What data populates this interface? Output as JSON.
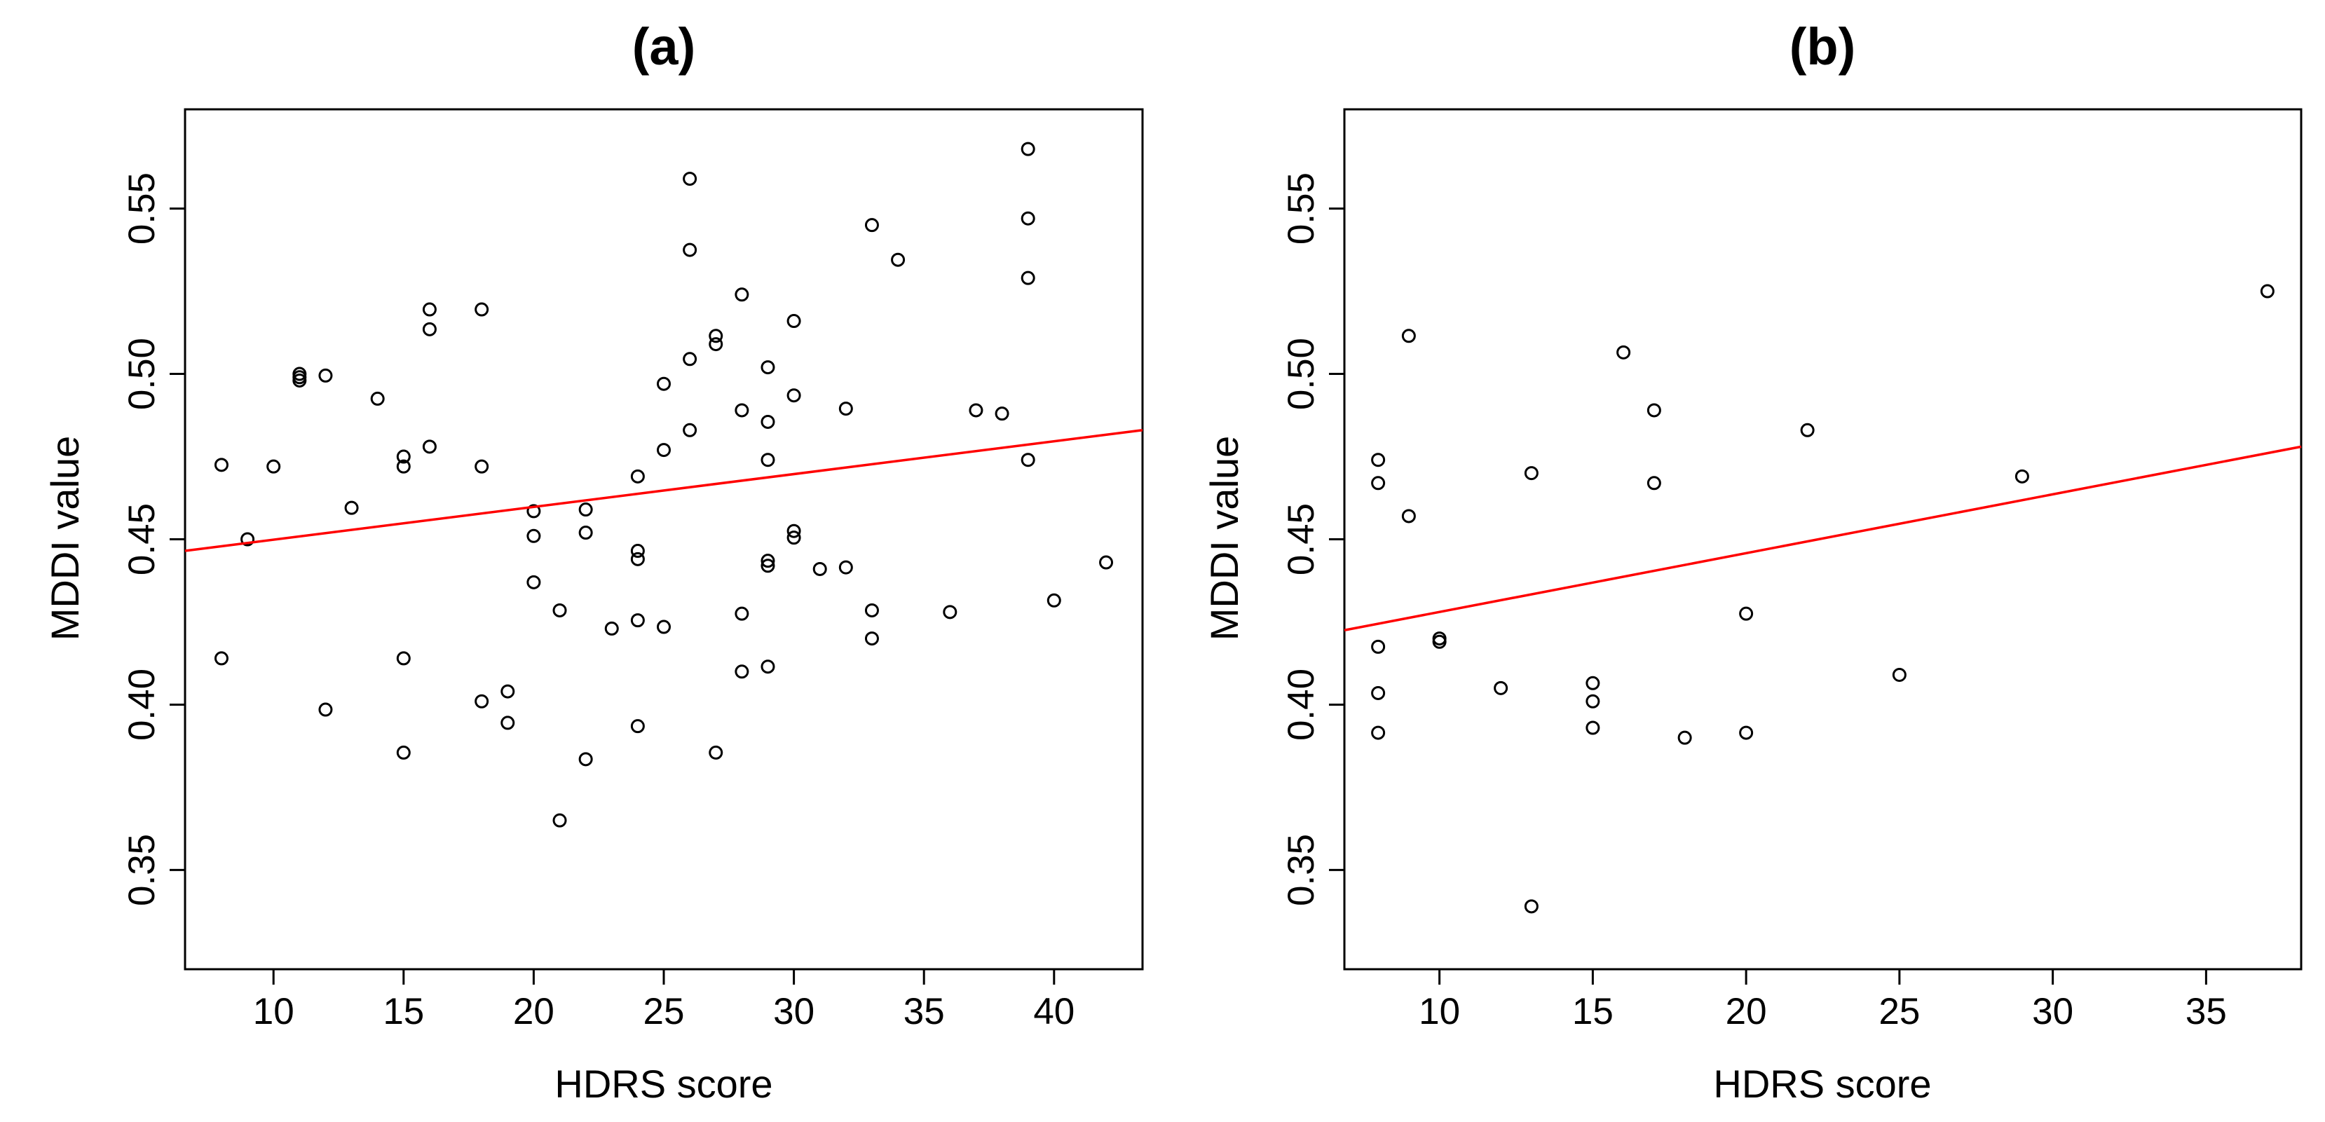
{
  "chart_data": [
    {
      "type": "scatter",
      "title": "(a)",
      "xlabel": "HDRS score",
      "ylabel": "MDDI value",
      "xlim": [
        6.6,
        43.4
      ],
      "ylim": [
        0.32,
        0.58
      ],
      "xticks": [
        10,
        15,
        20,
        25,
        30,
        35,
        40
      ],
      "xtick_labels": [
        "10",
        "15",
        "20",
        "25",
        "30",
        "35",
        "40"
      ],
      "yticks": [
        0.35,
        0.4,
        0.45,
        0.5,
        0.55
      ],
      "ytick_labels": [
        "0.35",
        "0.40",
        "0.45",
        "0.50",
        "0.55"
      ],
      "grid": false,
      "marker_color": "#000000",
      "line_color": "#ff0000",
      "regression": {
        "x": [
          6.6,
          43.4
        ],
        "y": [
          0.4465,
          0.483
        ]
      },
      "points": [
        {
          "x": 8,
          "y": 0.4725
        },
        {
          "x": 8,
          "y": 0.414
        },
        {
          "x": 9,
          "y": 0.45
        },
        {
          "x": 10,
          "y": 0.472
        },
        {
          "x": 11,
          "y": 0.5
        },
        {
          "x": 11,
          "y": 0.499
        },
        {
          "x": 11,
          "y": 0.498
        },
        {
          "x": 12,
          "y": 0.4995
        },
        {
          "x": 12,
          "y": 0.3985
        },
        {
          "x": 13,
          "y": 0.4595
        },
        {
          "x": 14,
          "y": 0.4925
        },
        {
          "x": 15,
          "y": 0.475
        },
        {
          "x": 15,
          "y": 0.472
        },
        {
          "x": 15,
          "y": 0.414
        },
        {
          "x": 15,
          "y": 0.3855
        },
        {
          "x": 16,
          "y": 0.5195
        },
        {
          "x": 16,
          "y": 0.5135
        },
        {
          "x": 16,
          "y": 0.478
        },
        {
          "x": 18,
          "y": 0.5195
        },
        {
          "x": 18,
          "y": 0.472
        },
        {
          "x": 18,
          "y": 0.401
        },
        {
          "x": 19,
          "y": 0.404
        },
        {
          "x": 19,
          "y": 0.3945
        },
        {
          "x": 20,
          "y": 0.4585
        },
        {
          "x": 20,
          "y": 0.451
        },
        {
          "x": 20,
          "y": 0.437
        },
        {
          "x": 21,
          "y": 0.4285
        },
        {
          "x": 21,
          "y": 0.365
        },
        {
          "x": 22,
          "y": 0.459
        },
        {
          "x": 22,
          "y": 0.452
        },
        {
          "x": 22,
          "y": 0.3835
        },
        {
          "x": 23,
          "y": 0.423
        },
        {
          "x": 24,
          "y": 0.469
        },
        {
          "x": 24,
          "y": 0.4465
        },
        {
          "x": 24,
          "y": 0.444
        },
        {
          "x": 24,
          "y": 0.4255
        },
        {
          "x": 24,
          "y": 0.3935
        },
        {
          "x": 25,
          "y": 0.497
        },
        {
          "x": 25,
          "y": 0.477
        },
        {
          "x": 25,
          "y": 0.4235
        },
        {
          "x": 26,
          "y": 0.559
        },
        {
          "x": 26,
          "y": 0.5375
        },
        {
          "x": 26,
          "y": 0.5045
        },
        {
          "x": 26,
          "y": 0.483
        },
        {
          "x": 27,
          "y": 0.5115
        },
        {
          "x": 27,
          "y": 0.509
        },
        {
          "x": 27,
          "y": 0.3855
        },
        {
          "x": 28,
          "y": 0.524
        },
        {
          "x": 28,
          "y": 0.489
        },
        {
          "x": 28,
          "y": 0.4275
        },
        {
          "x": 28,
          "y": 0.41
        },
        {
          "x": 29,
          "y": 0.502
        },
        {
          "x": 29,
          "y": 0.4855
        },
        {
          "x": 29,
          "y": 0.474
        },
        {
          "x": 29,
          "y": 0.4435
        },
        {
          "x": 29,
          "y": 0.442
        },
        {
          "x": 29,
          "y": 0.4115
        },
        {
          "x": 30,
          "y": 0.516
        },
        {
          "x": 30,
          "y": 0.4935
        },
        {
          "x": 30,
          "y": 0.4525
        },
        {
          "x": 30,
          "y": 0.4505
        },
        {
          "x": 31,
          "y": 0.441
        },
        {
          "x": 32,
          "y": 0.4895
        },
        {
          "x": 32,
          "y": 0.4415
        },
        {
          "x": 33,
          "y": 0.545
        },
        {
          "x": 33,
          "y": 0.4285
        },
        {
          "x": 33,
          "y": 0.42
        },
        {
          "x": 34,
          "y": 0.5345
        },
        {
          "x": 36,
          "y": 0.428
        },
        {
          "x": 37,
          "y": 0.489
        },
        {
          "x": 38,
          "y": 0.488
        },
        {
          "x": 39,
          "y": 0.568
        },
        {
          "x": 39,
          "y": 0.547
        },
        {
          "x": 39,
          "y": 0.529
        },
        {
          "x": 39,
          "y": 0.474
        },
        {
          "x": 40,
          "y": 0.4315
        },
        {
          "x": 42,
          "y": 0.443
        }
      ]
    },
    {
      "type": "scatter",
      "title": "(b)",
      "xlabel": "HDRS score",
      "ylabel": "MDDI value",
      "xlim": [
        6.9,
        38.1
      ],
      "ylim": [
        0.32,
        0.58
      ],
      "xticks": [
        10,
        15,
        20,
        25,
        30,
        35
      ],
      "xtick_labels": [
        "10",
        "15",
        "20",
        "25",
        "30",
        "35"
      ],
      "yticks": [
        0.35,
        0.4,
        0.45,
        0.5,
        0.55
      ],
      "ytick_labels": [
        "0.35",
        "0.40",
        "0.45",
        "0.50",
        "0.55"
      ],
      "grid": false,
      "marker_color": "#000000",
      "line_color": "#ff0000",
      "regression": {
        "x": [
          6.9,
          38.1
        ],
        "y": [
          0.4225,
          0.478
        ]
      },
      "points": [
        {
          "x": 8,
          "y": 0.474
        },
        {
          "x": 8,
          "y": 0.467
        },
        {
          "x": 8,
          "y": 0.4175
        },
        {
          "x": 8,
          "y": 0.4035
        },
        {
          "x": 8,
          "y": 0.3915
        },
        {
          "x": 9,
          "y": 0.5115
        },
        {
          "x": 9,
          "y": 0.457
        },
        {
          "x": 10,
          "y": 0.42
        },
        {
          "x": 10,
          "y": 0.419
        },
        {
          "x": 12,
          "y": 0.405
        },
        {
          "x": 13,
          "y": 0.47
        },
        {
          "x": 13,
          "y": 0.339
        },
        {
          "x": 15,
          "y": 0.4065
        },
        {
          "x": 15,
          "y": 0.401
        },
        {
          "x": 15,
          "y": 0.393
        },
        {
          "x": 16,
          "y": 0.5065
        },
        {
          "x": 17,
          "y": 0.489
        },
        {
          "x": 17,
          "y": 0.467
        },
        {
          "x": 18,
          "y": 0.39
        },
        {
          "x": 20,
          "y": 0.4275
        },
        {
          "x": 20,
          "y": 0.3915
        },
        {
          "x": 22,
          "y": 0.483
        },
        {
          "x": 25,
          "y": 0.409
        },
        {
          "x": 29,
          "y": 0.469
        },
        {
          "x": 37,
          "y": 0.525
        }
      ]
    }
  ]
}
